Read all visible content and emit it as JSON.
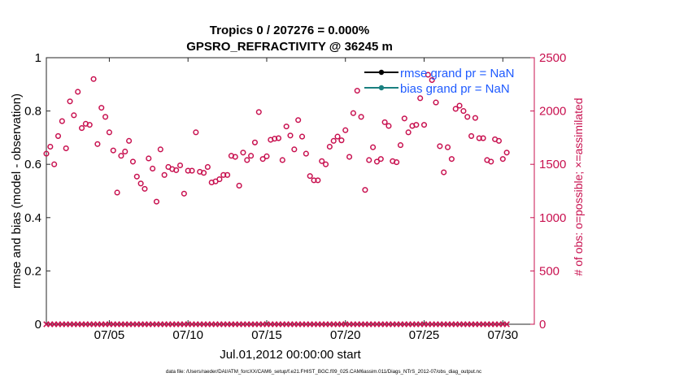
{
  "chart_data": {
    "type": "scatter",
    "title": "Tropics 0 / 207276 = 0.000%",
    "subtitle": "GPSRO_REFRACTIVITY @ 36245 m",
    "xlabel": "Jul.01,2012 00:00:00 start",
    "ylabel_left": "rmse and bias (model - observation)",
    "ylabel_right": "# of obs: o=possible; ×=assimilated",
    "footnote": "data file: /Users/raeder/DAI/ATM_forcXX/CAM6_setup/f.e21.FHIST_BGC.f09_025.CAM6assim.011/Diags_NTrS_2012-07/obs_diag_output.nc",
    "x_ticks": [
      {
        "label": "07/05",
        "day": 5
      },
      {
        "label": "07/10",
        "day": 10
      },
      {
        "label": "07/15",
        "day": 15
      },
      {
        "label": "07/20",
        "day": 20
      },
      {
        "label": "07/25",
        "day": 25
      },
      {
        "label": "07/30",
        "day": 30
      }
    ],
    "x_range_days": [
      1,
      32
    ],
    "ylim_left": [
      0,
      1
    ],
    "yticks_left": [
      "0",
      "0.2",
      "0.4",
      "0.6",
      "0.8",
      "1"
    ],
    "ylim_right": [
      0,
      2500
    ],
    "yticks_right": [
      "0",
      "500",
      "1000",
      "1500",
      "2000",
      "2500"
    ],
    "legend": {
      "placement": "top-right",
      "entries": [
        {
          "label": "rmse grand pr = NaN",
          "color": "#000000"
        },
        {
          "label": "bias grand pr = NaN",
          "color": "#1a8080"
        }
      ]
    },
    "colors": {
      "obs": "#c8104f",
      "legend_text": "#1f5bff"
    },
    "possible_obs": {
      "day_start": 1.0,
      "day_step": 0.25,
      "values": [
        1600,
        1665,
        1500,
        1765,
        1905,
        1650,
        2090,
        1960,
        2180,
        1840,
        1880,
        1870,
        2300,
        1690,
        2030,
        1945,
        1800,
        1630,
        1235,
        1580,
        1620,
        1720,
        1525,
        1385,
        1320,
        1270,
        1555,
        1460,
        1150,
        1640,
        1400,
        1475,
        1455,
        1445,
        1490,
        1225,
        1440,
        1440,
        1800,
        1430,
        1420,
        1475,
        1330,
        1340,
        1360,
        1400,
        1400,
        1580,
        1570,
        1300,
        1610,
        1540,
        1580,
        1705,
        1990,
        1550,
        1575,
        1730,
        1740,
        1745,
        1540,
        1855,
        1770,
        1640,
        1915,
        1760,
        1600,
        1390,
        1350,
        1350,
        1530,
        1500,
        1665,
        1720,
        1760,
        1725,
        1820,
        1570,
        1980,
        2190,
        1945,
        1260,
        1540,
        1660,
        1525,
        1550,
        1895,
        1860,
        1530,
        1520,
        1680,
        1930,
        1800,
        1860,
        1870,
        2120,
        1870,
        2340,
        2290,
        2080,
        1670,
        1425,
        1660,
        1550,
        2020,
        2050,
        2000,
        1945,
        1765,
        1935,
        1745,
        1745,
        1540,
        1525,
        1735,
        1720,
        1550,
        1610
      ]
    },
    "assimilated_obs": {
      "value": 0
    }
  }
}
